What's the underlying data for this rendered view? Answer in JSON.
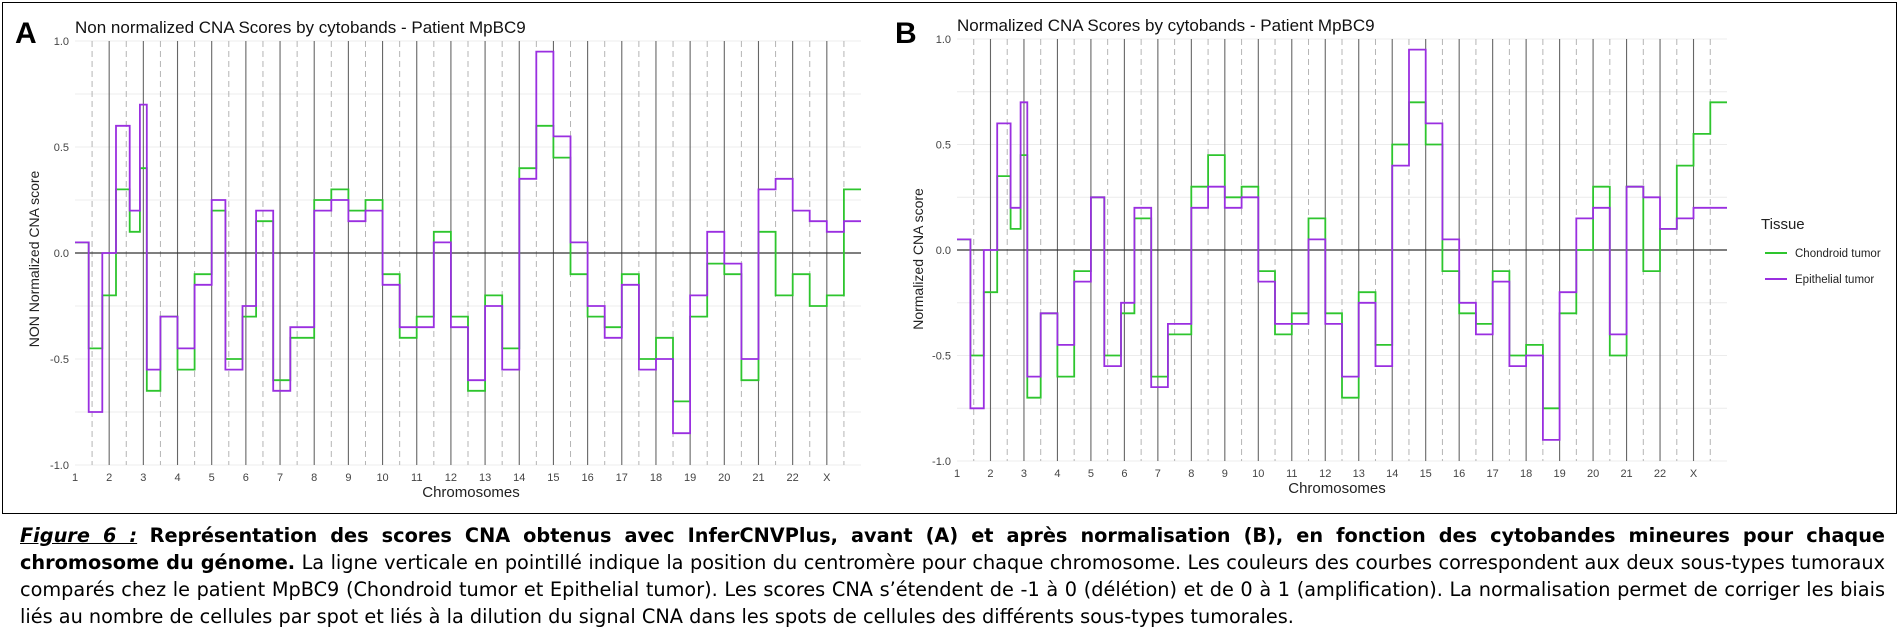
{
  "panels": [
    {
      "letter": "A",
      "title": "Non normalized CNA Scores by cytobands - Patient MpBC9",
      "ylabel": "NON Normalized CNA score",
      "xlabel": "Chromosomes"
    },
    {
      "letter": "B",
      "title": "Normalized CNA Scores by cytobands - Patient MpBC9",
      "ylabel": "Normalized CNA score",
      "xlabel": "Chromosomes"
    }
  ],
  "legend": {
    "title": "Tissue",
    "items": [
      "Chondroid tumor",
      "Epithelial tumor"
    ]
  },
  "colors": {
    "chondroid": "#2ec52e",
    "epithelial": "#9a2fe0"
  },
  "caption": {
    "label": "Figure 6 :",
    "title": "Représentation des scores CNA obtenus avec InferCNVPlus, avant (A) et après normalisation (B), en fonction des cytobandes mineures pour chaque chromosome du génome.",
    "body": "La ligne verticale en pointillé indique la position du centromère pour chaque chromosome. Les couleurs des courbes correspondent aux deux sous-types tumoraux comparés chez le patient MpBC9 (Chondroid tumor et Epithelial tumor). Les scores CNA s’étendent de -1 à 0 (délétion) et de 0 à 1 (amplification). La normalisation permet de corriger les biais liés au nombre de cellules par spot et liés à la dilution du signal CNA dans les spots de cellules des différents sous-types tumorales."
  },
  "chart_data": [
    {
      "type": "line",
      "title": "Non normalized CNA Scores by cytobands - Patient MpBC9",
      "xlabel": "Chromosomes",
      "ylabel": "NON Normalized CNA score",
      "ylim": [
        -1.0,
        1.0
      ],
      "yticks": [
        "1.0",
        "0.5",
        "0.0",
        "-0.5",
        "-1.0"
      ],
      "chromosomes": [
        "1",
        "2",
        "3",
        "4",
        "5",
        "6",
        "7",
        "8",
        "9",
        "10",
        "11",
        "12",
        "13",
        "14",
        "15",
        "16",
        "17",
        "18",
        "19",
        "20",
        "21",
        "22",
        "X"
      ],
      "grid": true,
      "legend": "none",
      "series": [
        {
          "key": "chondroid",
          "points": [
            [
              0,
              0.05
            ],
            [
              0.4,
              -0.45
            ],
            [
              0.8,
              -0.2
            ],
            [
              1.2,
              0.3
            ],
            [
              1.6,
              0.1
            ],
            [
              1.9,
              0.4
            ],
            [
              2.1,
              -0.65
            ],
            [
              2.5,
              -0.3
            ],
            [
              3,
              -0.55
            ],
            [
              3.5,
              -0.1
            ],
            [
              4,
              0.2
            ],
            [
              4.4,
              -0.5
            ],
            [
              4.9,
              -0.3
            ],
            [
              5.3,
              0.15
            ],
            [
              5.8,
              -0.6
            ],
            [
              6.3,
              -0.4
            ],
            [
              7,
              0.25
            ],
            [
              7.5,
              0.3
            ],
            [
              8,
              0.2
            ],
            [
              8.5,
              0.25
            ],
            [
              9,
              -0.1
            ],
            [
              9.5,
              -0.4
            ],
            [
              10,
              -0.3
            ],
            [
              10.5,
              0.1
            ],
            [
              11,
              -0.3
            ],
            [
              11.5,
              -0.65
            ],
            [
              12,
              -0.2
            ],
            [
              12.5,
              -0.45
            ],
            [
              13,
              0.4
            ],
            [
              13.5,
              0.6
            ],
            [
              14,
              0.45
            ],
            [
              14.5,
              -0.1
            ],
            [
              15,
              -0.3
            ],
            [
              15.5,
              -0.35
            ],
            [
              16,
              -0.1
            ],
            [
              16.5,
              -0.5
            ],
            [
              17,
              -0.4
            ],
            [
              17.5,
              -0.7
            ],
            [
              18,
              -0.3
            ],
            [
              18.5,
              -0.05
            ],
            [
              19,
              -0.1
            ],
            [
              19.5,
              -0.6
            ],
            [
              20,
              0.1
            ],
            [
              20.5,
              -0.2
            ],
            [
              21,
              -0.1
            ],
            [
              21.5,
              -0.25
            ],
            [
              22,
              -0.2
            ],
            [
              22.5,
              0.3
            ]
          ]
        },
        {
          "key": "epithelial",
          "points": [
            [
              0,
              0.05
            ],
            [
              0.4,
              -0.75
            ],
            [
              0.8,
              0.0
            ],
            [
              1.2,
              0.6
            ],
            [
              1.6,
              0.2
            ],
            [
              1.9,
              0.7
            ],
            [
              2.1,
              -0.55
            ],
            [
              2.5,
              -0.3
            ],
            [
              3,
              -0.45
            ],
            [
              3.5,
              -0.15
            ],
            [
              4,
              0.25
            ],
            [
              4.4,
              -0.55
            ],
            [
              4.9,
              -0.25
            ],
            [
              5.3,
              0.2
            ],
            [
              5.8,
              -0.65
            ],
            [
              6.3,
              -0.35
            ],
            [
              7,
              0.2
            ],
            [
              7.5,
              0.25
            ],
            [
              8,
              0.15
            ],
            [
              8.5,
              0.2
            ],
            [
              9,
              -0.15
            ],
            [
              9.5,
              -0.35
            ],
            [
              10,
              -0.35
            ],
            [
              10.5,
              0.05
            ],
            [
              11,
              -0.35
            ],
            [
              11.5,
              -0.6
            ],
            [
              12,
              -0.25
            ],
            [
              12.5,
              -0.55
            ],
            [
              13,
              0.35
            ],
            [
              13.5,
              0.95
            ],
            [
              14,
              0.55
            ],
            [
              14.5,
              0.05
            ],
            [
              15,
              -0.25
            ],
            [
              15.5,
              -0.4
            ],
            [
              16,
              -0.15
            ],
            [
              16.5,
              -0.55
            ],
            [
              17,
              -0.5
            ],
            [
              17.5,
              -0.85
            ],
            [
              18,
              -0.2
            ],
            [
              18.5,
              0.1
            ],
            [
              19,
              -0.05
            ],
            [
              19.5,
              -0.5
            ],
            [
              20,
              0.3
            ],
            [
              20.5,
              0.35
            ],
            [
              21,
              0.2
            ],
            [
              21.5,
              0.15
            ],
            [
              22,
              0.1
            ],
            [
              22.5,
              0.15
            ]
          ]
        }
      ]
    },
    {
      "type": "line",
      "title": "Normalized CNA Scores by cytobands - Patient MpBC9",
      "xlabel": "Chromosomes",
      "ylabel": "Normalized CNA score",
      "ylim": [
        -1.0,
        1.0
      ],
      "yticks": [
        "1.0",
        "0.5",
        "0.0",
        "-0.5",
        "-1.0"
      ],
      "chromosomes": [
        "1",
        "2",
        "3",
        "4",
        "5",
        "6",
        "7",
        "8",
        "9",
        "10",
        "11",
        "12",
        "13",
        "14",
        "15",
        "16",
        "17",
        "18",
        "19",
        "20",
        "21",
        "22",
        "X"
      ],
      "grid": true,
      "legend": "right",
      "series": [
        {
          "key": "chondroid",
          "points": [
            [
              0,
              0.05
            ],
            [
              0.4,
              -0.5
            ],
            [
              0.8,
              -0.2
            ],
            [
              1.2,
              0.35
            ],
            [
              1.6,
              0.1
            ],
            [
              1.9,
              0.45
            ],
            [
              2.1,
              -0.7
            ],
            [
              2.5,
              -0.3
            ],
            [
              3,
              -0.6
            ],
            [
              3.5,
              -0.1
            ],
            [
              4,
              0.25
            ],
            [
              4.4,
              -0.5
            ],
            [
              4.9,
              -0.3
            ],
            [
              5.3,
              0.15
            ],
            [
              5.8,
              -0.6
            ],
            [
              6.3,
              -0.4
            ],
            [
              7,
              0.3
            ],
            [
              7.5,
              0.45
            ],
            [
              8,
              0.25
            ],
            [
              8.5,
              0.3
            ],
            [
              9,
              -0.1
            ],
            [
              9.5,
              -0.4
            ],
            [
              10,
              -0.3
            ],
            [
              10.5,
              0.15
            ],
            [
              11,
              -0.3
            ],
            [
              11.5,
              -0.7
            ],
            [
              12,
              -0.2
            ],
            [
              12.5,
              -0.45
            ],
            [
              13,
              0.5
            ],
            [
              13.5,
              0.7
            ],
            [
              14,
              0.5
            ],
            [
              14.5,
              -0.1
            ],
            [
              15,
              -0.3
            ],
            [
              15.5,
              -0.35
            ],
            [
              16,
              -0.1
            ],
            [
              16.5,
              -0.5
            ],
            [
              17,
              -0.45
            ],
            [
              17.5,
              -0.75
            ],
            [
              18,
              -0.3
            ],
            [
              18.5,
              0.0
            ],
            [
              19,
              0.3
            ],
            [
              19.5,
              -0.5
            ],
            [
              20,
              0.3
            ],
            [
              20.5,
              -0.1
            ],
            [
              21,
              0.1
            ],
            [
              21.5,
              0.4
            ],
            [
              22,
              0.55
            ],
            [
              22.5,
              0.7
            ]
          ]
        },
        {
          "key": "epithelial",
          "points": [
            [
              0,
              0.05
            ],
            [
              0.4,
              -0.75
            ],
            [
              0.8,
              0.0
            ],
            [
              1.2,
              0.6
            ],
            [
              1.6,
              0.2
            ],
            [
              1.9,
              0.7
            ],
            [
              2.1,
              -0.6
            ],
            [
              2.5,
              -0.3
            ],
            [
              3,
              -0.45
            ],
            [
              3.5,
              -0.15
            ],
            [
              4,
              0.25
            ],
            [
              4.4,
              -0.55
            ],
            [
              4.9,
              -0.25
            ],
            [
              5.3,
              0.2
            ],
            [
              5.8,
              -0.65
            ],
            [
              6.3,
              -0.35
            ],
            [
              7,
              0.2
            ],
            [
              7.5,
              0.3
            ],
            [
              8,
              0.2
            ],
            [
              8.5,
              0.25
            ],
            [
              9,
              -0.15
            ],
            [
              9.5,
              -0.35
            ],
            [
              10,
              -0.35
            ],
            [
              10.5,
              0.05
            ],
            [
              11,
              -0.35
            ],
            [
              11.5,
              -0.6
            ],
            [
              12,
              -0.25
            ],
            [
              12.5,
              -0.55
            ],
            [
              13,
              0.4
            ],
            [
              13.5,
              0.95
            ],
            [
              14,
              0.6
            ],
            [
              14.5,
              0.05
            ],
            [
              15,
              -0.25
            ],
            [
              15.5,
              -0.4
            ],
            [
              16,
              -0.15
            ],
            [
              16.5,
              -0.55
            ],
            [
              17,
              -0.5
            ],
            [
              17.5,
              -0.9
            ],
            [
              18,
              -0.2
            ],
            [
              18.5,
              0.15
            ],
            [
              19,
              0.2
            ],
            [
              19.5,
              -0.4
            ],
            [
              20,
              0.3
            ],
            [
              20.5,
              0.25
            ],
            [
              21,
              0.1
            ],
            [
              21.5,
              0.15
            ],
            [
              22,
              0.2
            ],
            [
              22.5,
              0.2
            ]
          ]
        }
      ]
    }
  ]
}
